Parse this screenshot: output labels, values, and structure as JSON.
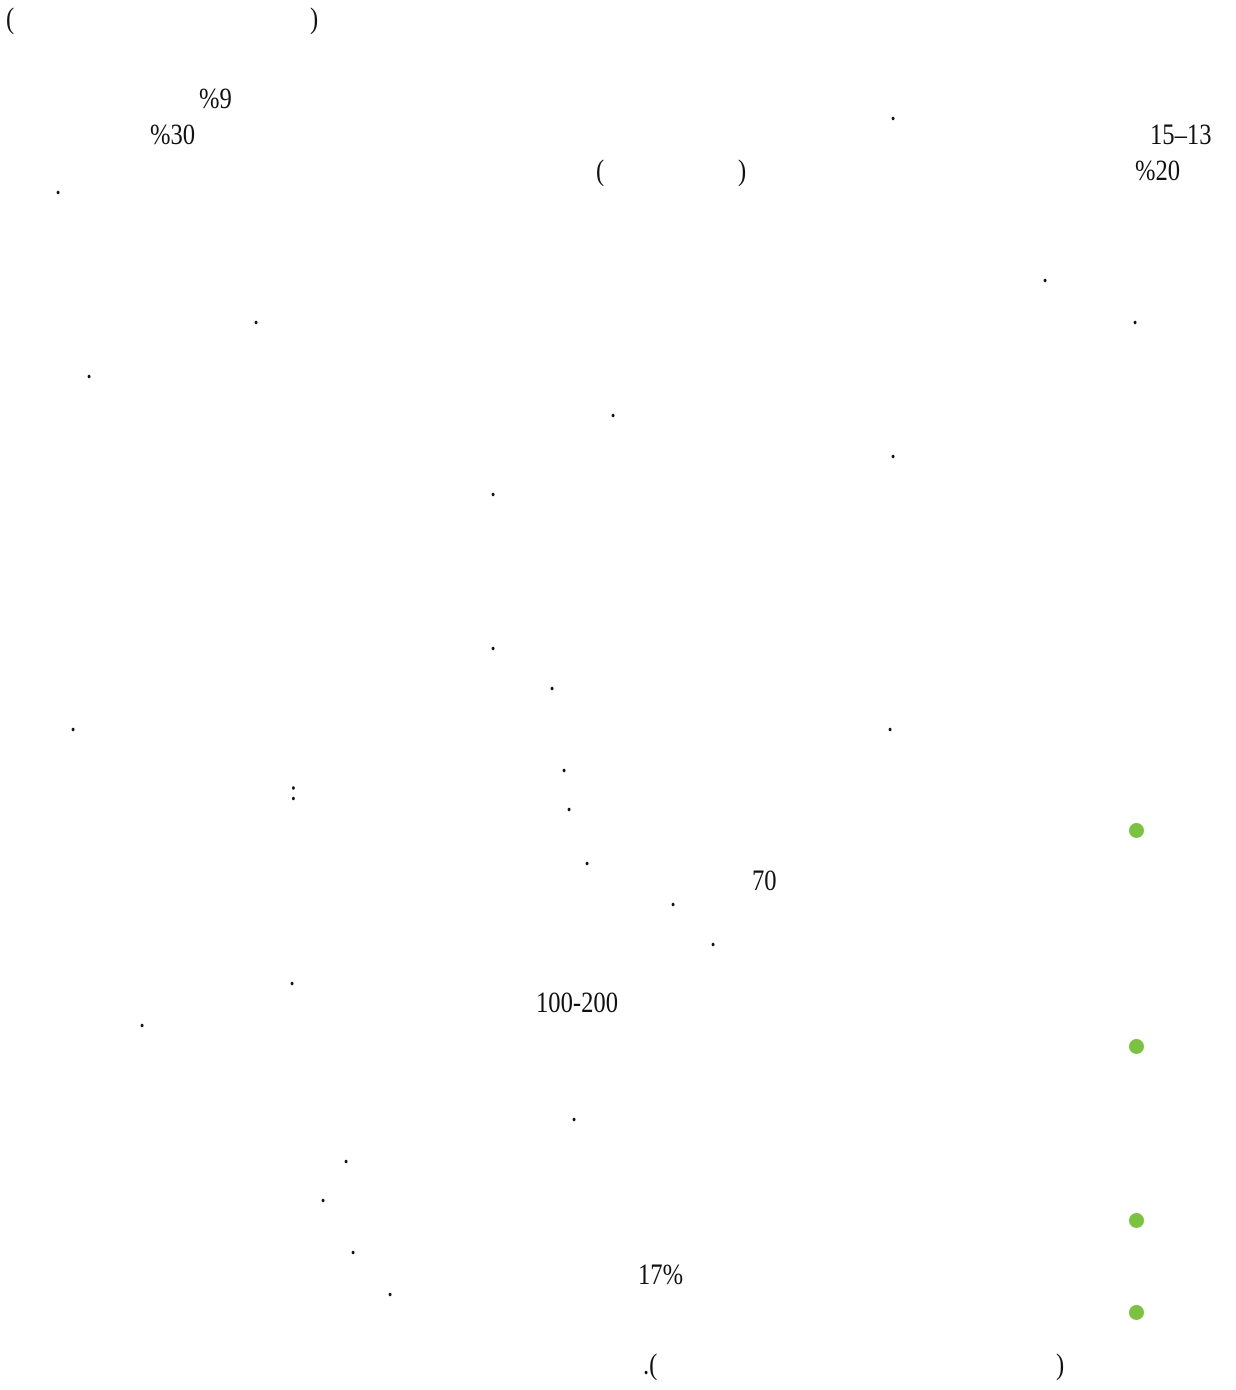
{
  "document": {
    "fragments": [
      {
        "id": "open-paren-top",
        "text": "("
      },
      {
        "id": "close-paren-top",
        "text": ")"
      },
      {
        "id": "pct-9",
        "text": "%9"
      },
      {
        "id": "pct-30",
        "text": "%30"
      },
      {
        "id": "range-15-13",
        "text": "15–13"
      },
      {
        "id": "pct-20",
        "text": "%20"
      },
      {
        "id": "open-paren-mid",
        "text": "("
      },
      {
        "id": "close-paren-mid",
        "text": ")"
      },
      {
        "id": "colon",
        "text": ":"
      },
      {
        "id": "num-70",
        "text": "70"
      },
      {
        "id": "range-100-200",
        "text": "100-200"
      },
      {
        "id": "pct-17",
        "text": "17%"
      },
      {
        "id": "paren-bottom-left",
        "text": ".("
      },
      {
        "id": "paren-bottom-right",
        "text": ")"
      }
    ],
    "periods_count": 31
  },
  "colors": {
    "text": "#111111",
    "bullet": "#7cc242",
    "background": "#ffffff"
  }
}
